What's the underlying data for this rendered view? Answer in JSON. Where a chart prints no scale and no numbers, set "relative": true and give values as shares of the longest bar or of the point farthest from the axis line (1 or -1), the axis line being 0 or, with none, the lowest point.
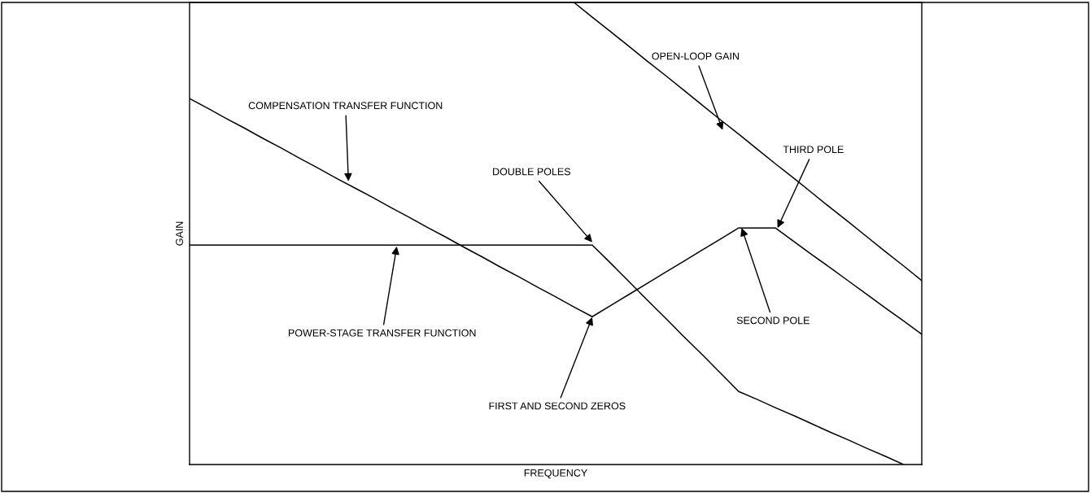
{
  "chart_data": {
    "type": "line",
    "relative": true,
    "xlabel": "FREQUENCY",
    "ylabel": "GAIN",
    "categories": [
      null,
      null,
      null,
      null,
      null,
      null,
      null,
      null,
      null,
      null,
      null,
      null,
      null,
      null,
      null,
      null,
      null,
      null,
      null,
      null,
      null,
      null,
      null,
      null,
      null,
      null,
      null,
      null,
      null,
      null,
      null,
      null,
      null,
      null,
      null,
      null,
      null,
      null,
      null,
      null,
      null
    ],
    "series": [
      {
        "color": "#000000",
        "values": [
          0.792,
          0.771,
          0.749,
          0.728,
          0.706,
          0.685,
          0.663,
          0.642,
          0.62,
          0.599,
          0.578,
          0.556,
          0.535,
          0.513,
          0.492,
          0.47,
          0.449,
          0.427,
          0.406,
          0.384,
          0.363,
          0.341,
          0.32,
          0.344,
          0.368,
          0.392,
          0.416,
          0.44,
          0.464,
          0.488,
          0.512,
          0.512,
          0.512,
          0.483,
          0.454,
          0.426,
          0.397,
          0.368,
          0.339,
          0.311,
          0.282
        ]
      },
      {
        "color": "#000000",
        "values": [
          0.475,
          0.475,
          0.475,
          0.475,
          0.475,
          0.475,
          0.475,
          0.475,
          0.475,
          0.475,
          0.475,
          0.475,
          0.475,
          0.475,
          0.475,
          0.475,
          0.475,
          0.475,
          0.475,
          0.475,
          0.475,
          0.475,
          0.475,
          0.436,
          0.396,
          0.356,
          0.317,
          0.277,
          0.238,
          0.198,
          0.158,
          0.141,
          0.123,
          0.106,
          0.088,
          0.07,
          0.053,
          0.035,
          0.018,
          0.0,
          null
        ]
      },
      {
        "color": "#000000",
        "values": [
          null,
          null,
          null,
          null,
          null,
          null,
          null,
          null,
          null,
          null,
          null,
          null,
          null,
          null,
          null,
          null,
          null,
          null,
          null,
          null,
          null,
          1.0,
          0.968,
          0.937,
          0.905,
          0.873,
          0.842,
          0.81,
          0.778,
          0.746,
          0.715,
          0.683,
          0.651,
          0.62,
          0.588,
          0.556,
          0.525,
          0.493,
          0.461,
          0.43,
          0.398
        ]
      }
    ],
    "annotations": [
      "COMPENSATION TRANSFER FUNCTION",
      "POWER-STAGE TRANSFER FUNCTION",
      "OPEN-LOOP GAIN",
      "DOUBLE POLES",
      "THIRD POLE",
      "SECOND POLE",
      "FIRST AND SECOND ZEROS"
    ]
  }
}
